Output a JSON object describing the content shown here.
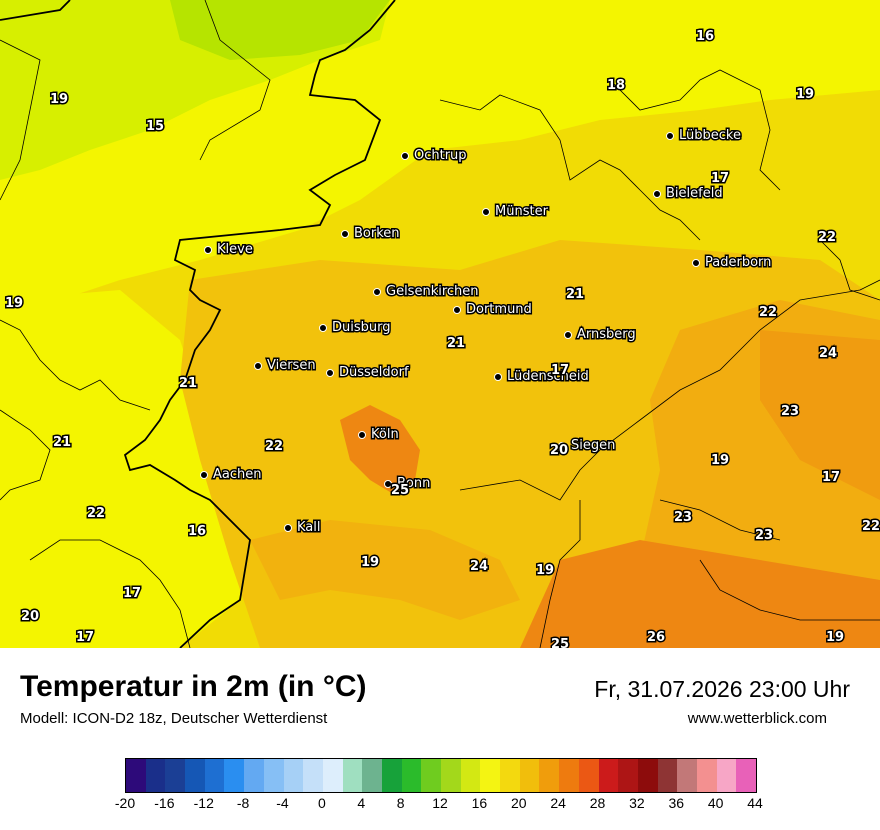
{
  "map": {
    "cities": [
      {
        "name": "Ochtrup",
        "key": "ochtrup"
      },
      {
        "name": "Lübbecke",
        "key": "luebbecke"
      },
      {
        "name": "Bielefeld",
        "key": "bielefeld"
      },
      {
        "name": "Münster",
        "key": "muenster"
      },
      {
        "name": "Borken",
        "key": "borken"
      },
      {
        "name": "Kleve",
        "key": "kleve"
      },
      {
        "name": "Paderborn",
        "key": "paderborn"
      },
      {
        "name": "Gelsenkirchen",
        "key": "gelsenkirchen"
      },
      {
        "name": "Dortmund",
        "key": "dortmund"
      },
      {
        "name": "Duisburg",
        "key": "duisburg"
      },
      {
        "name": "Arnsberg",
        "key": "arnsberg"
      },
      {
        "name": "Viersen",
        "key": "viersen"
      },
      {
        "name": "Düsseldorf",
        "key": "duesseldorf"
      },
      {
        "name": "Lüdenscheid",
        "key": "luedenscheid"
      },
      {
        "name": "Köln",
        "key": "koeln"
      },
      {
        "name": "Siegen",
        "key": "siegen"
      },
      {
        "name": "Aachen",
        "key": "aachen"
      },
      {
        "name": "Bonn",
        "key": "bonn"
      },
      {
        "name": "Kall",
        "key": "kall"
      }
    ],
    "temperature_labels": [
      "16",
      "19",
      "18",
      "15",
      "19",
      "17",
      "22",
      "19",
      "21",
      "22",
      "21",
      "24",
      "17",
      "21",
      "23",
      "22",
      "21",
      "20",
      "19",
      "17",
      "22",
      "16",
      "25",
      "23",
      "23",
      "22",
      "17",
      "24",
      "19",
      "19",
      "20",
      "17",
      "25",
      "26",
      "19"
    ]
  },
  "footer": {
    "title": "Temperatur in 2m (in °C)",
    "model": "Modell: ICON-D2 18z, Deutscher Wetterdienst",
    "datetime": "Fr, 31.07.2026 23:00 Uhr",
    "website": "www.wetterblick.com"
  },
  "legend": {
    "colors": [
      "#2d0a7a",
      "#1a2f8a",
      "#1b3f95",
      "#1557b5",
      "#1e6fd2",
      "#2a8ef0",
      "#63a9f2",
      "#86bff5",
      "#a6d0f6",
      "#c5e0f9",
      "#ddeefc",
      "#9fdfc0",
      "#6db38f",
      "#17a23a",
      "#2bbb2b",
      "#6fcc1f",
      "#a3d81b",
      "#d3e813",
      "#f4f412",
      "#f3d90f",
      "#f1be0c",
      "#f09d0c",
      "#ee7b0f",
      "#eb5814",
      "#cc1b1b",
      "#ad1515",
      "#8d0c0c",
      "#8e3434",
      "#c27878",
      "#f39090",
      "#f7a6c6",
      "#e861b8"
    ],
    "ticks": [
      "-20",
      "-16",
      "-12",
      "-8",
      "-4",
      "0",
      "4",
      "8",
      "12",
      "16",
      "20",
      "24",
      "28",
      "32",
      "36",
      "40",
      "44"
    ]
  }
}
